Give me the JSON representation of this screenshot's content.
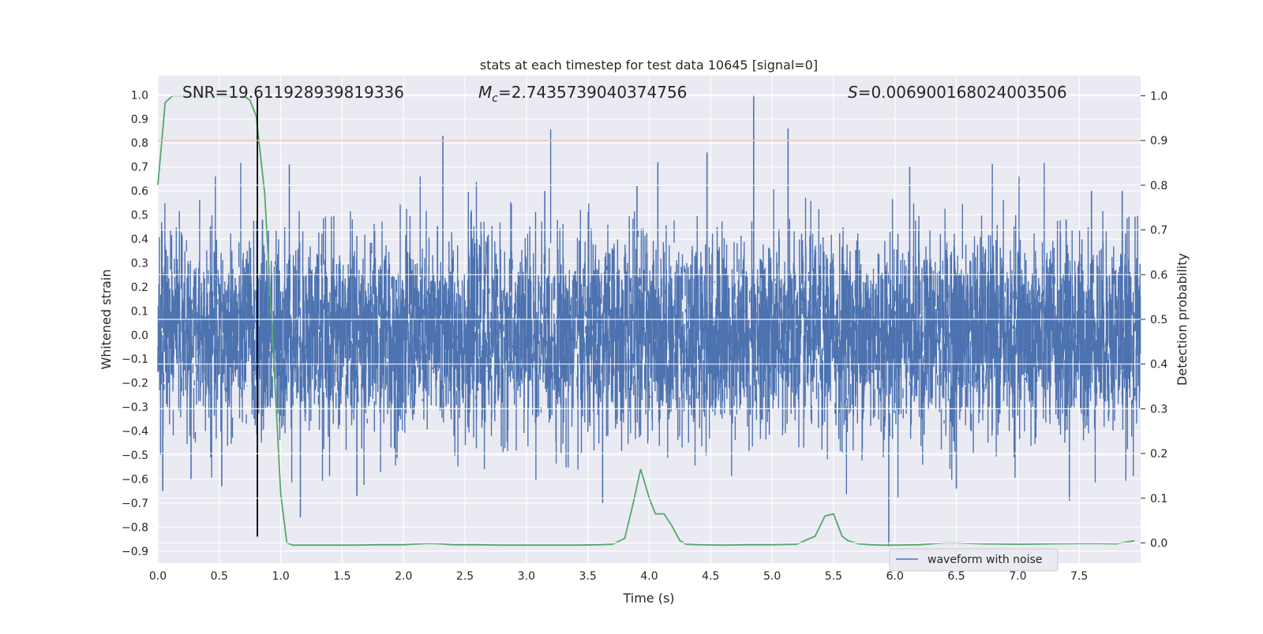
{
  "chart_data": {
    "type": "line",
    "title": "stats at each timestep for test data 10645 [signal=0]",
    "xlabel": "Time (s)",
    "ylabel": "Whitened strain",
    "y2label": "Detection probability",
    "xlim": [
      0.0,
      8.0
    ],
    "ylim": [
      -0.95,
      1.08
    ],
    "y2lim": [
      -0.045,
      1.045
    ],
    "xticks": [
      "0.0",
      "0.5",
      "1.0",
      "1.5",
      "2.0",
      "2.5",
      "3.0",
      "3.5",
      "4.0",
      "4.5",
      "5.0",
      "5.5",
      "6.0",
      "6.5",
      "7.0",
      "7.5"
    ],
    "yticks": [
      "1.0",
      "0.9",
      "0.8",
      "0.7",
      "0.6",
      "0.5",
      "0.4",
      "0.3",
      "0.2",
      "0.1",
      "0.0",
      "−0.1",
      "−0.2",
      "−0.3",
      "−0.4",
      "−0.5",
      "−0.6",
      "−0.7",
      "−0.8",
      "−0.9"
    ],
    "y2ticks": [
      "1.0",
      "0.9",
      "0.8",
      "0.7",
      "0.6",
      "0.5",
      "0.4",
      "0.3",
      "0.2",
      "0.1",
      "0.0"
    ],
    "grid": true,
    "legend": {
      "position": "lower-right",
      "entries": [
        "waveform with noise"
      ]
    },
    "annotations": {
      "snr_prefix": "SNR=",
      "snr_value": "19.611928939819336",
      "mc_symbol": "M",
      "mc_subscript": "c",
      "mc_value": "=2.7435739040374756",
      "s_symbol": "S",
      "s_value": "=0.006900168024003506"
    },
    "series": [
      {
        "name": "waveform with noise",
        "color": "#4c72b0",
        "axis": "left",
        "sample_rate": 512,
        "envelope_range": [
          -0.93,
          1.0
        ],
        "spikes": [
          {
            "x": 0.04,
            "y": -0.65
          },
          {
            "x": 0.27,
            "y": -0.6
          },
          {
            "x": 0.52,
            "y": -0.63
          },
          {
            "x": 1.07,
            "y": 0.71
          },
          {
            "x": 1.16,
            "y": -0.76
          },
          {
            "x": 1.62,
            "y": -0.67
          },
          {
            "x": 2.32,
            "y": 0.83
          },
          {
            "x": 3.15,
            "y": 0.6
          },
          {
            "x": 3.62,
            "y": -0.7
          },
          {
            "x": 3.9,
            "y": 0.62
          },
          {
            "x": 4.07,
            "y": 0.72
          },
          {
            "x": 4.47,
            "y": 0.76
          },
          {
            "x": 4.85,
            "y": 1.0
          },
          {
            "x": 5.13,
            "y": 0.86
          },
          {
            "x": 5.95,
            "y": -0.88
          },
          {
            "x": 6.12,
            "y": 0.7
          },
          {
            "x": 6.5,
            "y": -0.64
          },
          {
            "x": 7.42,
            "y": -0.69
          },
          {
            "x": 7.6,
            "y": 0.6
          },
          {
            "x": 7.85,
            "y": 0.6
          }
        ]
      },
      {
        "name": "",
        "color": "#55a868",
        "axis": "right",
        "x": [
          0.0,
          0.06,
          0.12,
          0.2,
          0.3,
          0.4,
          0.5,
          0.6,
          0.7,
          0.75,
          0.8,
          0.87,
          0.93,
          1.0,
          1.05,
          1.1,
          1.2,
          1.4,
          1.6,
          1.8,
          2.0,
          2.2,
          2.3,
          2.4,
          2.6,
          2.8,
          3.0,
          3.2,
          3.4,
          3.6,
          3.7,
          3.8,
          3.87,
          3.93,
          4.0,
          4.05,
          4.12,
          4.18,
          4.25,
          4.3,
          4.4,
          4.6,
          4.8,
          5.0,
          5.2,
          5.35,
          5.43,
          5.5,
          5.57,
          5.62,
          5.7,
          5.8,
          5.9,
          6.0,
          6.2,
          6.3,
          6.4,
          6.5,
          6.7,
          7.0,
          7.3,
          7.6,
          7.8,
          7.95
        ],
        "y": [
          0.8,
          0.985,
          1.0,
          1.0,
          1.0,
          1.0,
          1.0,
          1.0,
          1.0,
          0.99,
          0.955,
          0.78,
          0.48,
          0.11,
          0.0,
          -0.005,
          -0.005,
          -0.005,
          -0.005,
          -0.004,
          -0.004,
          -0.001,
          -0.002,
          -0.004,
          -0.004,
          -0.005,
          -0.005,
          -0.005,
          -0.005,
          -0.004,
          -0.003,
          0.01,
          0.09,
          0.165,
          0.1,
          0.065,
          0.065,
          0.04,
          0.005,
          -0.003,
          -0.004,
          -0.005,
          -0.004,
          -0.004,
          -0.003,
          0.015,
          0.06,
          0.065,
          0.015,
          0.005,
          -0.002,
          -0.004,
          -0.005,
          -0.005,
          -0.004,
          -0.002,
          0.0,
          0.0,
          -0.002,
          -0.003,
          -0.002,
          -0.001,
          -0.002,
          0.005
        ]
      },
      {
        "name": "",
        "color": "#c44e52",
        "axis": "right",
        "type": "hline",
        "y": 0.9
      },
      {
        "name": "",
        "color": "#000000",
        "axis": "left",
        "type": "vline",
        "x": 0.81,
        "ymin": -0.84,
        "ymax": 1.0
      }
    ]
  }
}
